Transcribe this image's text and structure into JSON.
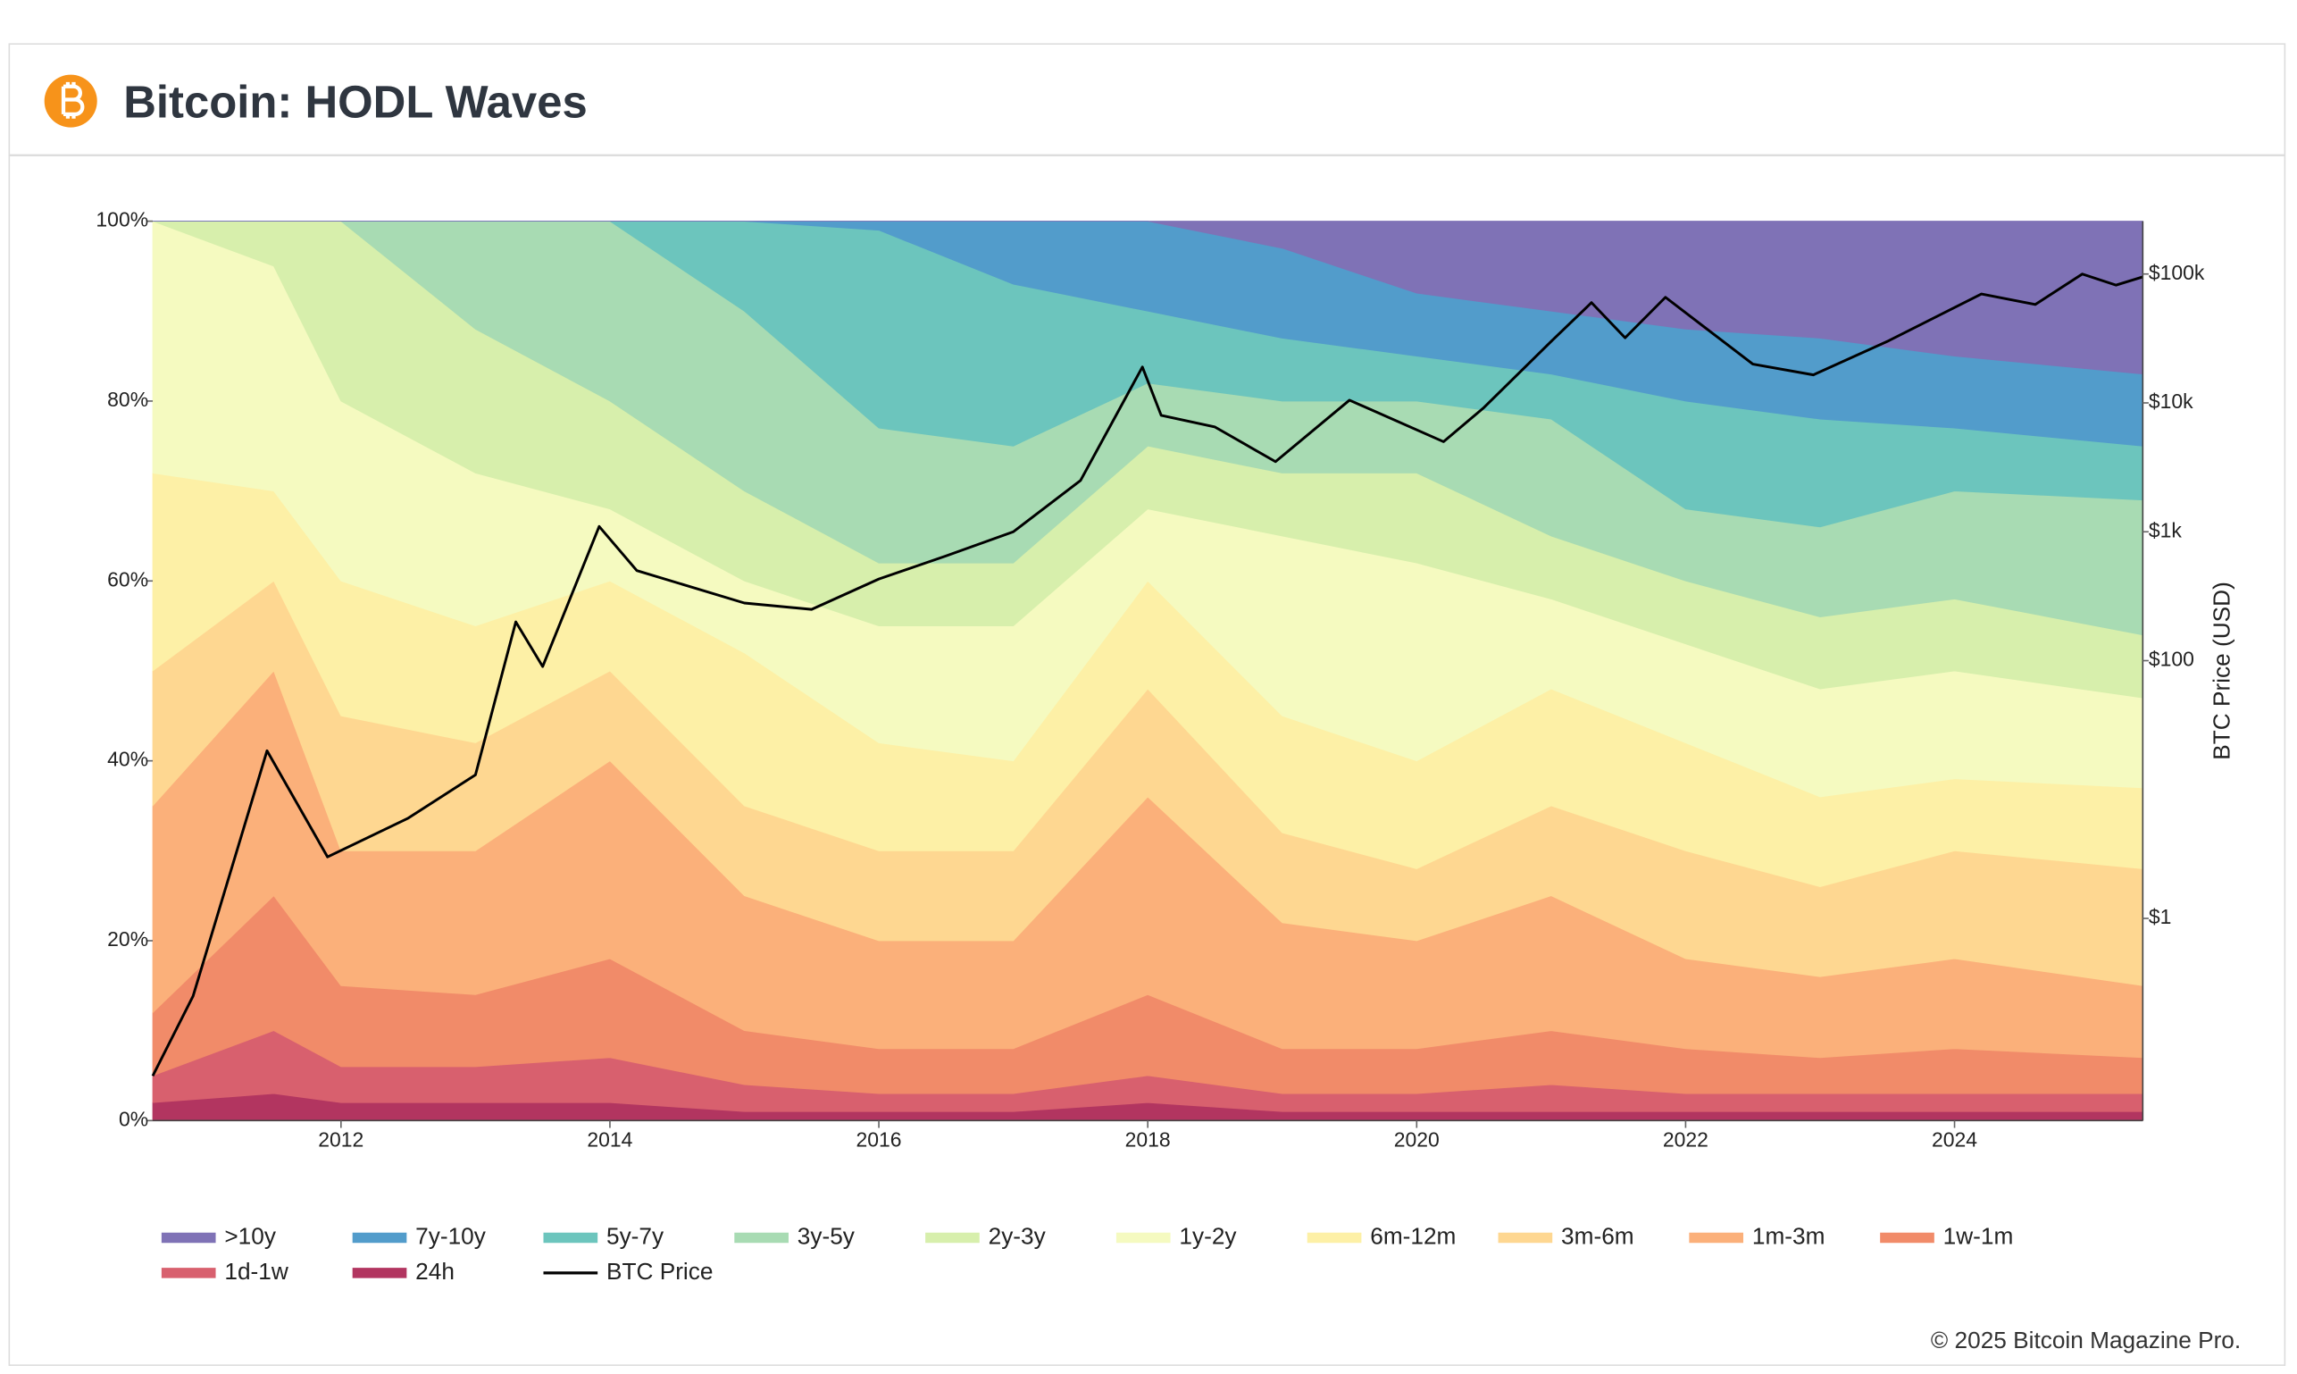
{
  "chart_data": {
    "type": "stacked_area",
    "title": "Bitcoin: HODL Waves",
    "y2_label": "BTC Price (USD)",
    "copyright": "© 2025 Bitcoin Magazine Pro.",
    "x": [
      2010.6,
      2011.5,
      2012,
      2013,
      2014,
      2015,
      2016,
      2017,
      2018,
      2019,
      2020,
      2021,
      2022,
      2023,
      2024,
      2025.4
    ],
    "xlim": [
      2010.6,
      2025.4
    ],
    "xticks": [
      2012,
      2014,
      2016,
      2018,
      2020,
      2022,
      2024
    ],
    "ylim": [
      0,
      100
    ],
    "yticks": [
      {
        "value": 0,
        "label": "0%"
      },
      {
        "value": 20,
        "label": "20%"
      },
      {
        "value": 40,
        "label": "40%"
      },
      {
        "value": 60,
        "label": "60%"
      },
      {
        "value": 80,
        "label": "80%"
      },
      {
        "value": 100,
        "label": "100%"
      }
    ],
    "y2_log": true,
    "y2lim": [
      0.027,
      257000
    ],
    "y2ticks": [
      {
        "value": 1,
        "label": "$1"
      },
      {
        "value": 100,
        "label": "$100"
      },
      {
        "value": 1000,
        "label": "$1k"
      },
      {
        "value": 10000,
        "label": "$10k"
      },
      {
        "value": 100000,
        "label": "$100k"
      }
    ],
    "series": [
      {
        "name": ">10y",
        "color": "#7f72b6",
        "values": [
          0,
          0,
          0,
          0,
          0,
          0,
          0,
          0,
          0,
          3,
          8,
          10,
          12,
          13,
          15,
          17
        ]
      },
      {
        "name": "7y-10y",
        "color": "#529ccb",
        "values": [
          0,
          0,
          0,
          0,
          0,
          0,
          1,
          7,
          10,
          10,
          7,
          7,
          8,
          9,
          8,
          8
        ]
      },
      {
        "name": "5y-7y",
        "color": "#6cc5bd",
        "values": [
          0,
          0,
          0,
          0,
          0,
          10,
          22,
          18,
          8,
          7,
          5,
          5,
          12,
          12,
          7,
          6
        ]
      },
      {
        "name": "3y-5y",
        "color": "#a8dbb3",
        "values": [
          0,
          0,
          0,
          12,
          20,
          20,
          15,
          13,
          7,
          8,
          8,
          13,
          8,
          10,
          12,
          15
        ]
      },
      {
        "name": "2y-3y",
        "color": "#d7efac",
        "values": [
          0,
          5,
          20,
          16,
          12,
          10,
          7,
          7,
          7,
          7,
          10,
          7,
          7,
          8,
          8,
          7
        ]
      },
      {
        "name": "1y-2y",
        "color": "#f5fac0",
        "values": [
          28,
          25,
          20,
          17,
          8,
          8,
          13,
          15,
          8,
          20,
          22,
          10,
          11,
          12,
          12,
          10
        ]
      },
      {
        "name": "6m-12m",
        "color": "#fdf0a6",
        "values": [
          22,
          10,
          15,
          13,
          10,
          17,
          12,
          10,
          12,
          13,
          12,
          13,
          12,
          10,
          8,
          9
        ]
      },
      {
        "name": "3m-6m",
        "color": "#fed791",
        "values": [
          15,
          10,
          15,
          12,
          10,
          10,
          10,
          10,
          12,
          10,
          8,
          10,
          12,
          10,
          12,
          13
        ]
      },
      {
        "name": "1m-3m",
        "color": "#fbb07a",
        "values": [
          23,
          25,
          15,
          16,
          22,
          15,
          12,
          12,
          22,
          14,
          12,
          15,
          10,
          9,
          10,
          8
        ]
      },
      {
        "name": "1w-1m",
        "color": "#f18b69",
        "values": [
          7,
          15,
          9,
          8,
          11,
          6,
          5,
          5,
          9,
          5,
          5,
          6,
          5,
          4,
          5,
          4
        ]
      },
      {
        "name": "1d-1w",
        "color": "#d8606e",
        "values": [
          3,
          7,
          4,
          4,
          5,
          3,
          2,
          2,
          3,
          2,
          2,
          3,
          2,
          2,
          2,
          2
        ]
      },
      {
        "name": "24h",
        "color": "#b23560",
        "values": [
          2,
          3,
          2,
          2,
          2,
          1,
          1,
          1,
          2,
          1,
          1,
          1,
          1,
          1,
          1,
          1
        ]
      },
      {
        "name": "BTC Price",
        "color": "#000000",
        "axis": "y2",
        "x": [
          2010.6,
          2010.9,
          2011.45,
          2011.9,
          2012.5,
          2013.0,
          2013.3,
          2013.5,
          2013.92,
          2014.2,
          2015.0,
          2015.5,
          2016.0,
          2016.5,
          2017.0,
          2017.5,
          2017.96,
          2018.1,
          2018.5,
          2018.95,
          2019.5,
          2020.2,
          2020.5,
          2021.0,
          2021.3,
          2021.55,
          2021.85,
          2022.5,
          2022.95,
          2023.5,
          2024.2,
          2024.6,
          2024.95,
          2025.2,
          2025.4
        ],
        "values": [
          0.06,
          0.25,
          20,
          3,
          6,
          13,
          200,
          90,
          1100,
          500,
          280,
          250,
          430,
          650,
          1000,
          2500,
          19000,
          8000,
          6500,
          3500,
          10500,
          5000,
          9200,
          30000,
          60000,
          32000,
          66000,
          20000,
          16500,
          30000,
          70000,
          58000,
          100000,
          82000,
          95000
        ]
      }
    ]
  }
}
